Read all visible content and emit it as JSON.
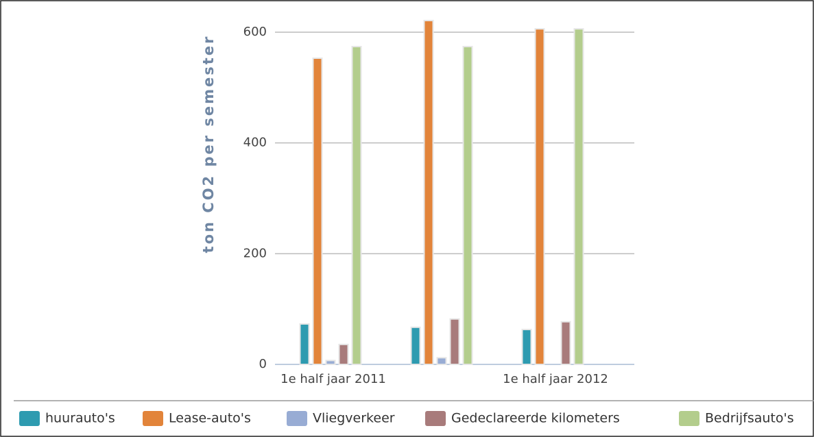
{
  "chart_data": {
    "type": "bar",
    "y_label": "ton CO2 per semester",
    "categories": [
      "1e half jaar 2011",
      null,
      "1e half jaar 2012"
    ],
    "series": [
      {
        "name": "huurauto's",
        "color": "#2e9bb0",
        "values": [
          73,
          67,
          63
        ]
      },
      {
        "name": "Lease-auto's",
        "color": "#e2843a",
        "values": [
          553,
          621,
          606
        ]
      },
      {
        "name": "Vliegverkeer",
        "color": "#98acd4",
        "values": [
          7,
          12,
          0
        ]
      },
      {
        "name": "Gedeclareerde kilometers",
        "color": "#a87b7b",
        "values": [
          36,
          82,
          77
        ]
      },
      {
        "name": "Bedrijfsauto's",
        "color": "#b3cd8c",
        "values": [
          574,
          574,
          606
        ]
      }
    ],
    "ylim": [
      0,
      600
    ],
    "yticks": [
      0,
      200,
      400,
      600
    ],
    "grid": true,
    "legend": "bottom"
  }
}
